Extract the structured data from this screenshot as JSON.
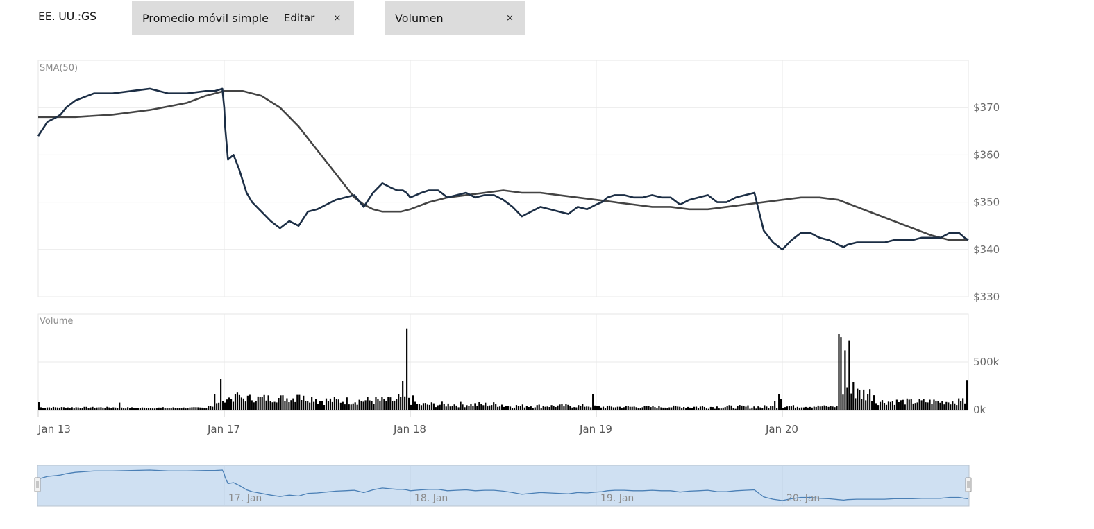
{
  "header": {
    "ticker": "EE. UU.:GS",
    "indicator_chip": {
      "label": "Promedio móvil simple",
      "edit_label": "Editar",
      "close_label": "×"
    },
    "volume_chip": {
      "label": "Volumen",
      "close_label": "×"
    }
  },
  "chart_data": {
    "type": "line",
    "price_panel": {
      "label": "SMA(50)",
      "y_tick_labels": [
        "$370",
        "$360",
        "$350",
        "$340",
        "$330"
      ],
      "y_ticks": [
        370,
        360,
        350,
        340,
        330
      ],
      "ylim": [
        330,
        380
      ],
      "colors": {
        "price": "#1c2e45",
        "sma": "#444444"
      },
      "price_series": {
        "x": [
          0,
          0.05,
          0.1,
          0.12,
          0.15,
          0.2,
          0.3,
          0.35,
          0.4,
          0.5,
          0.6,
          0.7,
          0.8,
          0.9,
          0.95,
          0.99,
          1.0,
          1.005,
          1.02,
          1.05,
          1.08,
          1.12,
          1.15,
          1.2,
          1.25,
          1.3,
          1.35,
          1.4,
          1.45,
          1.5,
          1.55,
          1.6,
          1.65,
          1.7,
          1.75,
          1.8,
          1.85,
          1.9,
          1.93,
          1.96,
          1.98,
          2.0,
          2.03,
          2.06,
          2.1,
          2.15,
          2.2,
          2.25,
          2.3,
          2.35,
          2.4,
          2.45,
          2.5,
          2.55,
          2.6,
          2.65,
          2.7,
          2.75,
          2.8,
          2.85,
          2.9,
          2.95,
          3.0,
          3.03,
          3.06,
          3.1,
          3.15,
          3.2,
          3.25,
          3.3,
          3.35,
          3.4,
          3.45,
          3.5,
          3.55,
          3.6,
          3.65,
          3.7,
          3.75,
          3.8,
          3.85,
          3.9,
          3.95,
          4.0,
          4.05,
          4.1,
          4.15,
          4.2,
          4.25,
          4.28,
          4.3,
          4.33,
          4.35,
          4.4,
          4.45,
          4.5,
          4.55,
          4.6,
          4.65,
          4.7,
          4.75,
          4.8,
          4.85,
          4.9,
          4.95,
          4.98,
          5.0
        ],
        "y": [
          364,
          367,
          368,
          368.5,
          370,
          371.5,
          373,
          373,
          373,
          373.5,
          374,
          373,
          373,
          373.5,
          373.5,
          374,
          370,
          366,
          359,
          360,
          357,
          352,
          350,
          348,
          346,
          344.5,
          346,
          345,
          348,
          348.5,
          349.5,
          350.5,
          351,
          351.5,
          349,
          352,
          354,
          353,
          352.5,
          352.5,
          352,
          351,
          351.5,
          352,
          352.5,
          352.5,
          351,
          351.5,
          352,
          351,
          351.5,
          351.5,
          350.5,
          349,
          347,
          348,
          349,
          348.5,
          348,
          347.5,
          349,
          348.5,
          349.5,
          350,
          351,
          351.5,
          351.5,
          351,
          351,
          351.5,
          351,
          351,
          349.5,
          350.5,
          351,
          351.5,
          350,
          350,
          351,
          351.5,
          352,
          344,
          341.5,
          340,
          342,
          343.5,
          343.5,
          342.5,
          342,
          341.5,
          341,
          340.5,
          341,
          341.5,
          341.5,
          341.5,
          341.5,
          342,
          342,
          342,
          342.5,
          342.5,
          342.5,
          343.5,
          343.5,
          342.5,
          342
        ]
      },
      "sma_series": {
        "x": [
          0,
          0.2,
          0.4,
          0.6,
          0.8,
          0.9,
          1.0,
          1.1,
          1.2,
          1.3,
          1.4,
          1.5,
          1.6,
          1.7,
          1.75,
          1.8,
          1.85,
          1.9,
          1.95,
          2.0,
          2.1,
          2.2,
          2.3,
          2.4,
          2.5,
          2.6,
          2.7,
          2.8,
          2.9,
          3.0,
          3.1,
          3.2,
          3.3,
          3.4,
          3.5,
          3.6,
          3.7,
          3.8,
          3.9,
          4.0,
          4.1,
          4.2,
          4.3,
          4.4,
          4.5,
          4.6,
          4.7,
          4.8,
          4.9,
          4.95,
          5.0
        ],
        "y": [
          368,
          368,
          368.5,
          369.5,
          371,
          372.5,
          373.5,
          373.5,
          372.5,
          370,
          366,
          361,
          356,
          351,
          349.5,
          348.5,
          348,
          348,
          348,
          348.5,
          350,
          351,
          351.5,
          352,
          352.5,
          352,
          352,
          351.5,
          351,
          350.5,
          350,
          349.5,
          349,
          349,
          348.5,
          348.5,
          349,
          349.5,
          350,
          350.5,
          351,
          351,
          350.5,
          349,
          347.5,
          346,
          344.5,
          343,
          342,
          342,
          342
        ]
      }
    },
    "volume_panel": {
      "label": "Volume",
      "y_tick_labels": [
        "500k",
        "0k"
      ],
      "y_ticks": [
        500000,
        0
      ],
      "ylim": [
        0,
        1000000
      ],
      "bar_color": "#000000",
      "segments": [
        {
          "x0": 0.0,
          "x1": 0.45,
          "base": 25000,
          "amp": 6000,
          "spikes": [
            [
              0.0,
              80000
            ],
            [
              0.44,
              75000
            ]
          ]
        },
        {
          "x0": 0.45,
          "x1": 0.9,
          "base": 20000,
          "amp": 8000,
          "spikes": []
        },
        {
          "x0": 0.9,
          "x1": 1.0,
          "base": 55000,
          "amp": 40000,
          "spikes": [
            [
              0.985,
              320000
            ],
            [
              0.95,
              160000
            ]
          ]
        },
        {
          "x0": 1.0,
          "x1": 1.5,
          "base": 120000,
          "amp": 45000,
          "spikes": [
            [
              1.07,
              180000
            ],
            [
              1.4,
              155000
            ]
          ]
        },
        {
          "x0": 1.5,
          "x1": 2.0,
          "base": 95000,
          "amp": 45000,
          "spikes": [
            [
              1.985,
              850000
            ],
            [
              1.96,
              300000
            ],
            [
              1.94,
              160000
            ]
          ]
        },
        {
          "x0": 2.0,
          "x1": 2.5,
          "base": 55000,
          "amp": 30000,
          "spikes": [
            [
              2.02,
              150000
            ]
          ]
        },
        {
          "x0": 2.5,
          "x1": 3.0,
          "base": 40000,
          "amp": 20000,
          "spikes": [
            [
              2.985,
              165000
            ]
          ]
        },
        {
          "x0": 3.0,
          "x1": 3.5,
          "base": 30000,
          "amp": 15000,
          "spikes": []
        },
        {
          "x0": 3.5,
          "x1": 4.0,
          "base": 30000,
          "amp": 20000,
          "spikes": [
            [
              3.96,
              90000
            ],
            [
              3.98,
              165000
            ],
            [
              3.99,
              110000
            ]
          ]
        },
        {
          "x0": 4.0,
          "x1": 4.3,
          "base": 35000,
          "amp": 15000,
          "spikes": []
        },
        {
          "x0": 4.3,
          "x1": 4.5,
          "base": 170000,
          "amp": 90000,
          "spikes": [
            [
              4.31,
              790000
            ],
            [
              4.32,
              760000
            ],
            [
              4.34,
              620000
            ],
            [
              4.36,
              720000
            ],
            [
              4.38,
              290000
            ]
          ]
        },
        {
          "x0": 4.5,
          "x1": 5.0,
          "base": 85000,
          "amp": 35000,
          "spikes": [
            [
              4.97,
              120000
            ],
            [
              4.99,
              310000
            ]
          ]
        }
      ]
    },
    "x_axis": {
      "labels": [
        "Jan 13",
        "Jan 17",
        "Jan 18",
        "Jan 19",
        "Jan 20"
      ],
      "positions": [
        0,
        1,
        2,
        3,
        4
      ],
      "xlim": [
        0,
        5
      ]
    },
    "navigator": {
      "labels": [
        "17. Jan",
        "18. Jan",
        "19. Jan",
        "20. Jan"
      ],
      "positions": [
        1,
        2,
        3,
        4
      ],
      "fill_color": "#cfe0f2",
      "line_color": "#4a7fb5"
    }
  }
}
